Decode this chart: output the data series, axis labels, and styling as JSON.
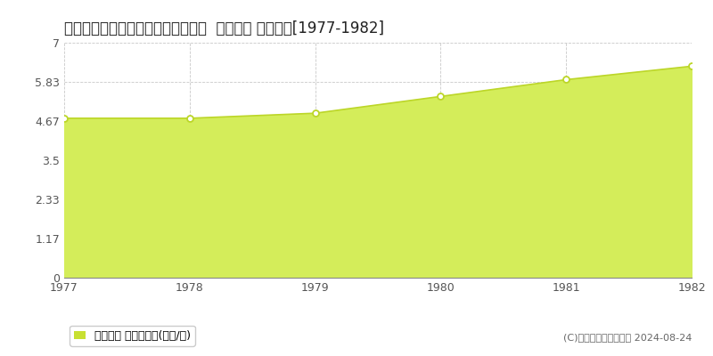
{
  "title": "北海道江別市緑町東２丁目４２番３  地価公示 地価推移[1977-1982]",
  "years": [
    1977,
    1978,
    1979,
    1980,
    1981,
    1982
  ],
  "values": [
    4.75,
    4.75,
    4.9,
    5.4,
    5.9,
    6.3
  ],
  "yticks": [
    0,
    1.17,
    2.33,
    3.5,
    4.67,
    5.83,
    7
  ],
  "ytick_labels": [
    "0",
    "1.17",
    "2.33",
    "3.5",
    "4.67",
    "5.83",
    "7"
  ],
  "ylim": [
    0,
    7
  ],
  "xlim_min": 1977,
  "xlim_max": 1982,
  "line_color": "#bcd628",
  "fill_color": "#d4ed5a",
  "marker_facecolor": "#ffffff",
  "marker_edgecolor": "#bcd628",
  "grid_color": "#bbbbbb",
  "background_color": "#ffffff",
  "plot_bg_color": "#ffffff",
  "legend_label": "地価公示 平均坪単価(万円/坪)",
  "legend_marker_color": "#c8e032",
  "copyright_text": "(C)土地価格ドットコム 2024-08-24",
  "title_fontsize": 12,
  "tick_fontsize": 9,
  "legend_fontsize": 9,
  "copyright_fontsize": 8
}
